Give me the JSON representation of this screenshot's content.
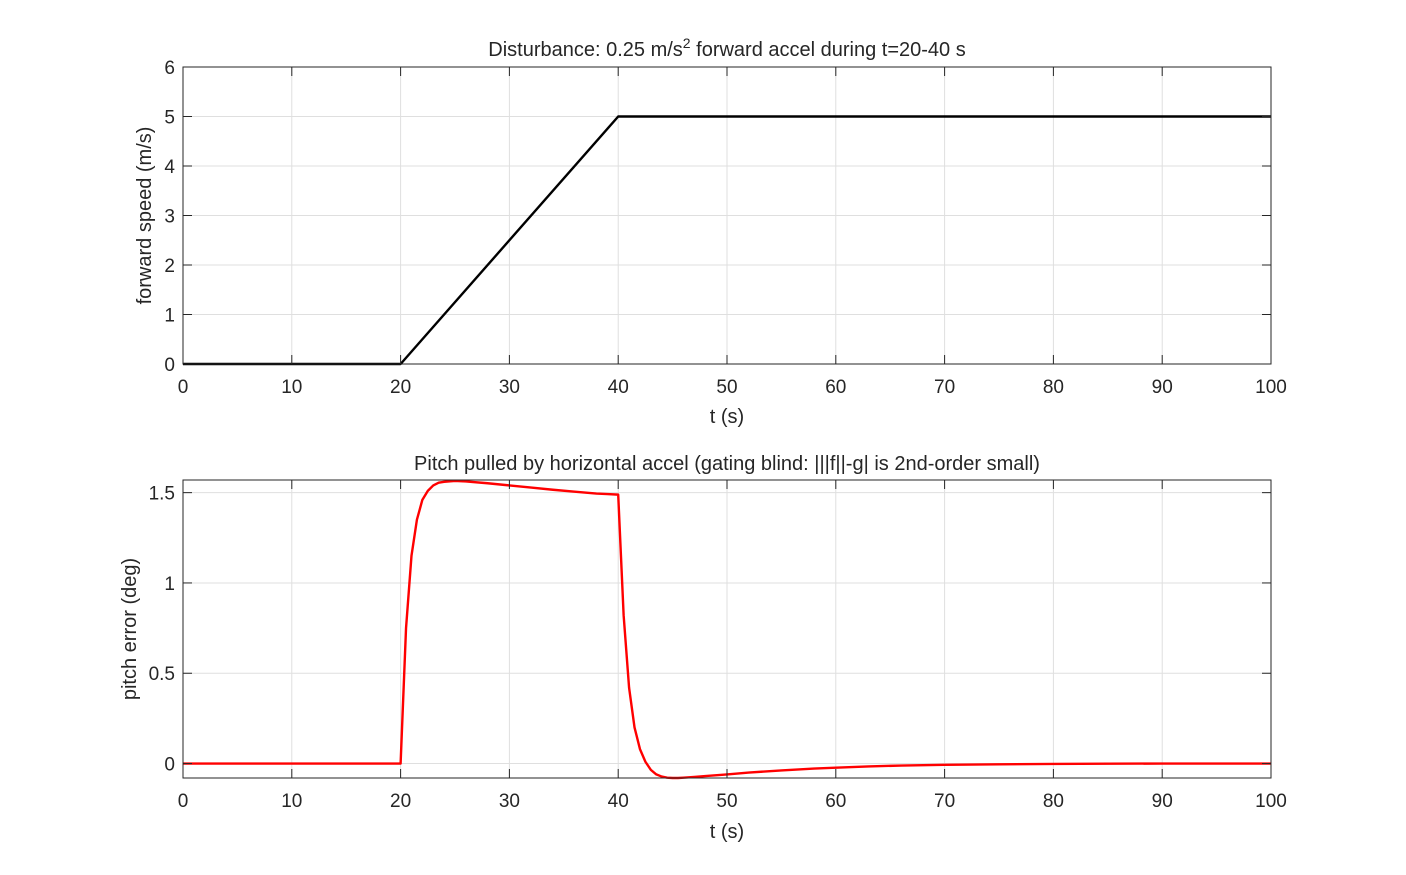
{
  "chart_data": [
    {
      "type": "line",
      "title": "Disturbance: 0.25 m/s",
      "title_sup": "2",
      "title_rest": " forward accel during t=20-40 s",
      "xlabel": "t (s)",
      "ylabel": "forward speed (m/s)",
      "xlim": [
        0,
        100
      ],
      "ylim": [
        0,
        6
      ],
      "xticks": [
        0,
        10,
        20,
        30,
        40,
        50,
        60,
        70,
        80,
        90,
        100
      ],
      "yticks": [
        0,
        1,
        2,
        3,
        4,
        5,
        6
      ],
      "grid": true,
      "series_color": "#000000",
      "x": [
        0,
        20,
        40,
        100
      ],
      "y": [
        0,
        0,
        5,
        5
      ]
    },
    {
      "type": "line",
      "title": "Pitch pulled by horizontal accel (gating blind: |||f||-g| is 2nd-order small)",
      "xlabel": "t (s)",
      "ylabel": "pitch error (deg)",
      "xlim": [
        0,
        100
      ],
      "ylim": [
        -0.08,
        1.57
      ],
      "xticks": [
        0,
        10,
        20,
        30,
        40,
        50,
        60,
        70,
        80,
        90,
        100
      ],
      "yticks": [
        0,
        0.5,
        1,
        1.5
      ],
      "grid": true,
      "series_color": "#ff0000",
      "x": [
        0,
        20,
        20.5,
        21,
        21.5,
        22,
        22.5,
        23,
        23.5,
        24,
        25,
        26,
        28,
        30,
        32,
        34,
        36,
        38,
        39,
        40,
        40.5,
        41,
        41.5,
        42,
        42.5,
        43,
        43.5,
        44,
        44.5,
        45,
        45.5,
        46,
        47,
        48,
        50,
        52,
        55,
        58,
        60,
        63,
        66,
        70,
        75,
        80,
        85,
        90,
        95,
        100
      ],
      "y": [
        0,
        0,
        0.75,
        1.15,
        1.35,
        1.46,
        1.51,
        1.54,
        1.555,
        1.56,
        1.565,
        1.562,
        1.552,
        1.54,
        1.528,
        1.516,
        1.505,
        1.495,
        1.492,
        1.489,
        0.82,
        0.42,
        0.2,
        0.08,
        0.01,
        -0.035,
        -0.06,
        -0.072,
        -0.078,
        -0.08,
        -0.08,
        -0.078,
        -0.074,
        -0.069,
        -0.06,
        -0.05,
        -0.038,
        -0.028,
        -0.023,
        -0.016,
        -0.011,
        -0.007,
        -0.004,
        -0.002,
        -0.001,
        0,
        0,
        0
      ]
    }
  ]
}
